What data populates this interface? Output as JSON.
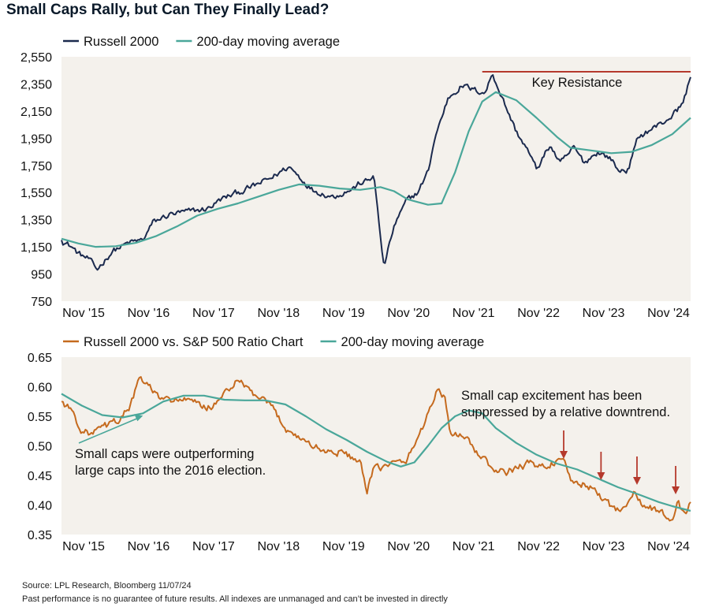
{
  "title": "Small Caps Rally, but Can They Finally Lead?",
  "source": "Source: LPL Research, Bloomberg 11/07/24",
  "disclaimer": "Past performance is no guarantee of future results. All indexes are unmanaged and can’t be invested in directly",
  "colors": {
    "navy": "#1b2a4e",
    "teal": "#4aa79a",
    "orange": "#c56a1e",
    "red": "#b5392c",
    "panel": "#f4f1ec"
  },
  "chart_data": [
    {
      "type": "line",
      "legend": [
        "Russell 2000",
        "200-day moving average"
      ],
      "ylim": [
        750,
        2550
      ],
      "yticks": [
        "2,550",
        "2,350",
        "2,150",
        "1,950",
        "1,750",
        "1,550",
        "1,350",
        "1,150",
        "950",
        "750"
      ],
      "xticks": [
        "Nov '15",
        "Nov '16",
        "Nov '17",
        "Nov '18",
        "Nov '19",
        "Nov '20",
        "Nov '21",
        "Nov '22",
        "Nov '23",
        "Nov '24"
      ],
      "xrange": [
        2015.6,
        2024.87
      ],
      "annotation": {
        "text": "Key Resistance",
        "value": 2440,
        "x_start": 2021.8,
        "x_end": 2024.87
      },
      "series": [
        {
          "name": "Russell 2000",
          "x": [
            2015.6,
            2015.75,
            2015.85,
            2016.0,
            2016.12,
            2016.35,
            2016.6,
            2016.8,
            2016.95,
            2017.2,
            2017.5,
            2017.75,
            2017.95,
            2018.2,
            2018.45,
            2018.7,
            2018.85,
            2018.95,
            2019.0,
            2019.3,
            2019.6,
            2019.9,
            2020.0,
            2020.15,
            2020.2,
            2020.25,
            2020.35,
            2020.5,
            2020.7,
            2020.85,
            2021.0,
            2021.1,
            2021.3,
            2021.5,
            2021.7,
            2021.85,
            2021.95,
            2022.1,
            2022.3,
            2022.45,
            2022.6,
            2022.8,
            2022.95,
            2023.15,
            2023.3,
            2023.5,
            2023.7,
            2023.8,
            2023.95,
            2024.1,
            2024.3,
            2024.45,
            2024.6,
            2024.75,
            2024.87
          ],
          "values": [
            1200,
            1150,
            1100,
            1060,
            980,
            1120,
            1180,
            1200,
            1330,
            1390,
            1410,
            1430,
            1500,
            1550,
            1600,
            1660,
            1710,
            1740,
            1720,
            1570,
            1520,
            1580,
            1620,
            1640,
            1700,
            1450,
            1000,
            1300,
            1500,
            1550,
            1700,
            1950,
            2250,
            2340,
            2300,
            2290,
            2430,
            2240,
            2000,
            1880,
            1720,
            1900,
            1760,
            1880,
            1770,
            1850,
            1800,
            1710,
            1720,
            1960,
            2020,
            2060,
            2120,
            2200,
            2400
          ]
        },
        {
          "name": "200-day moving average",
          "x": [
            2015.6,
            2015.85,
            2016.1,
            2016.4,
            2016.7,
            2017.0,
            2017.3,
            2017.6,
            2017.9,
            2018.2,
            2018.5,
            2018.8,
            2019.1,
            2019.4,
            2019.7,
            2020.0,
            2020.3,
            2020.5,
            2020.7,
            2020.85,
            2021.0,
            2021.2,
            2021.4,
            2021.6,
            2021.8,
            2022.0,
            2022.3,
            2022.6,
            2022.9,
            2023.1,
            2023.4,
            2023.7,
            2024.0,
            2024.3,
            2024.6,
            2024.87
          ],
          "values": [
            1210,
            1175,
            1150,
            1155,
            1180,
            1230,
            1300,
            1380,
            1430,
            1470,
            1520,
            1570,
            1610,
            1600,
            1580,
            1570,
            1590,
            1560,
            1500,
            1480,
            1460,
            1470,
            1700,
            2000,
            2220,
            2290,
            2230,
            2100,
            1960,
            1880,
            1860,
            1840,
            1850,
            1900,
            1980,
            2100
          ]
        }
      ]
    },
    {
      "type": "line",
      "legend": [
        "Russell 2000 vs. S&P 500 Ratio Chart",
        "200-day moving average"
      ],
      "ylim": [
        0.35,
        0.65
      ],
      "yticks": [
        "0.65",
        "0.60",
        "0.55",
        "0.50",
        "0.45",
        "0.40",
        "0.35"
      ],
      "xticks": [
        "Nov '15",
        "Nov '16",
        "Nov '17",
        "Nov '18",
        "Nov '19",
        "Nov '20",
        "Nov '21",
        "Nov '22",
        "Nov '23",
        "Nov '24"
      ],
      "xrange": [
        2015.6,
        2024.87
      ],
      "annotations": [
        {
          "text": [
            "Small caps were outperforming",
            "large caps into the 2016 election."
          ],
          "arrow_to": {
            "x": 2016.8,
            "y": 0.551
          }
        },
        {
          "text": [
            "Small cap excitement has been",
            "suppressed by a relative downtrend."
          ],
          "down_arrows": [
            {
              "x": 2023.0,
              "y": 0.478
            },
            {
              "x": 2023.55,
              "y": 0.442
            },
            {
              "x": 2024.08,
              "y": 0.434
            },
            {
              "x": 2024.65,
              "y": 0.418
            }
          ]
        }
      ],
      "series": [
        {
          "name": "Russell 2000 vs. S&P 500 Ratio Chart",
          "x": [
            2015.6,
            2015.75,
            2015.9,
            2016.05,
            2016.2,
            2016.4,
            2016.6,
            2016.75,
            2016.9,
            2017.0,
            2017.1,
            2017.3,
            2017.5,
            2017.7,
            2017.9,
            2018.0,
            2018.2,
            2018.3,
            2018.5,
            2018.7,
            2018.9,
            2019.1,
            2019.3,
            2019.5,
            2019.7,
            2019.9,
            2020.0,
            2020.1,
            2020.2,
            2020.35,
            2020.5,
            2020.65,
            2020.8,
            2020.95,
            2021.05,
            2021.15,
            2021.25,
            2021.35,
            2021.45,
            2021.6,
            2021.8,
            2022.0,
            2022.15,
            2022.3,
            2022.5,
            2022.7,
            2022.9,
            2023.0,
            2023.1,
            2023.3,
            2023.45,
            2023.6,
            2023.75,
            2023.9,
            2024.05,
            2024.15,
            2024.3,
            2024.45,
            2024.6,
            2024.68,
            2024.72,
            2024.8,
            2024.87
          ],
          "values": [
            0.575,
            0.56,
            0.525,
            0.52,
            0.53,
            0.54,
            0.565,
            0.612,
            0.6,
            0.585,
            0.575,
            0.58,
            0.575,
            0.565,
            0.57,
            0.59,
            0.61,
            0.6,
            0.58,
            0.565,
            0.53,
            0.515,
            0.5,
            0.49,
            0.49,
            0.48,
            0.47,
            0.42,
            0.46,
            0.465,
            0.47,
            0.47,
            0.5,
            0.54,
            0.57,
            0.598,
            0.58,
            0.51,
            0.52,
            0.505,
            0.48,
            0.455,
            0.455,
            0.462,
            0.47,
            0.465,
            0.475,
            0.47,
            0.44,
            0.435,
            0.425,
            0.41,
            0.39,
            0.4,
            0.42,
            0.4,
            0.395,
            0.385,
            0.375,
            0.41,
            0.39,
            0.385,
            0.405
          ]
        },
        {
          "name": "200-day moving average",
          "x": [
            2015.6,
            2015.9,
            2016.2,
            2016.5,
            2016.8,
            2017.1,
            2017.4,
            2017.7,
            2018.0,
            2018.3,
            2018.6,
            2018.9,
            2019.2,
            2019.5,
            2019.8,
            2020.1,
            2020.4,
            2020.6,
            2020.8,
            2021.0,
            2021.2,
            2021.4,
            2021.6,
            2021.8,
            2022.0,
            2022.3,
            2022.6,
            2022.9,
            2023.2,
            2023.5,
            2023.8,
            2024.1,
            2024.4,
            2024.6,
            2024.87
          ],
          "values": [
            0.588,
            0.568,
            0.552,
            0.548,
            0.555,
            0.575,
            0.585,
            0.585,
            0.578,
            0.577,
            0.577,
            0.57,
            0.55,
            0.528,
            0.51,
            0.49,
            0.473,
            0.465,
            0.472,
            0.5,
            0.53,
            0.55,
            0.56,
            0.555,
            0.53,
            0.505,
            0.485,
            0.47,
            0.46,
            0.445,
            0.43,
            0.418,
            0.405,
            0.398,
            0.39
          ]
        }
      ]
    }
  ]
}
